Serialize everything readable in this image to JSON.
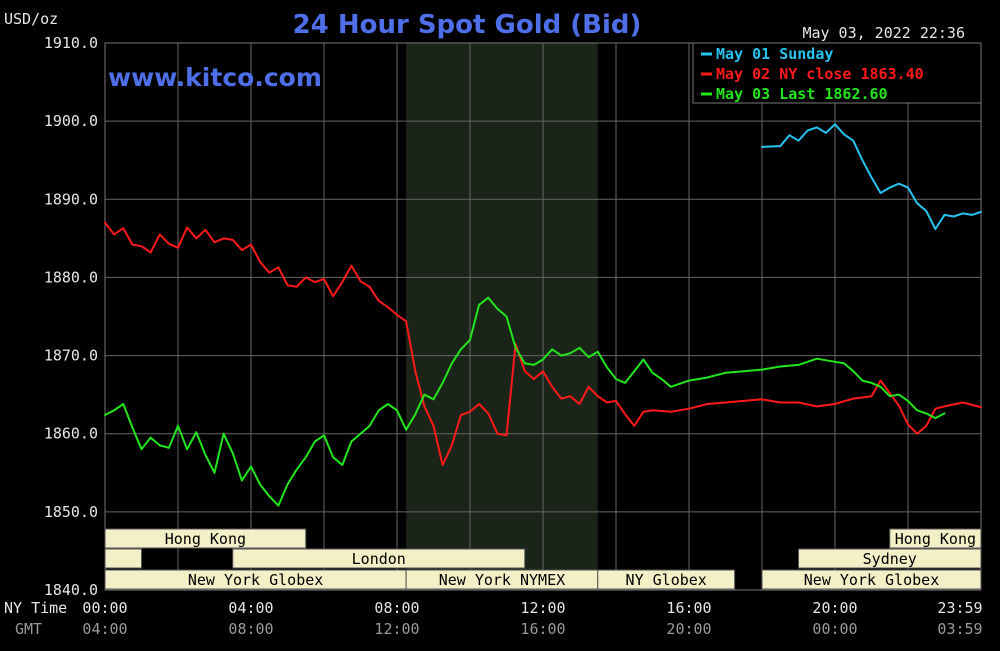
{
  "unit_label": "USD/oz",
  "title": "24 Hour Spot Gold (Bid)",
  "timestamp": "May 03, 2022 22:36",
  "watermark": "www.kitco.com",
  "colors": {
    "background": "#000000",
    "title": "#4f6fe8",
    "grid": "#666666",
    "axis_text": "#e6e6e6",
    "gmt_text": "#9a9a9a",
    "session_fill": "#f3efc6",
    "session_text": "#000000",
    "ny_session_shade": "#1b2418"
  },
  "legend": [
    {
      "label": "May 01 Sunday",
      "color": "#27c3ef"
    },
    {
      "label": "May 02 NY close 1863.40",
      "color": "#ff1a1a"
    },
    {
      "label": "May 03 Last 1862.60",
      "color": "#22e61c"
    }
  ],
  "x_row_labels": {
    "ny": "NY Time",
    "gmt": "GMT"
  },
  "x_ticks_ny": [
    "00:00",
    "04:00",
    "08:00",
    "12:00",
    "16:00",
    "20:00",
    "23:59"
  ],
  "x_ticks_gmt": [
    "04:00",
    "08:00",
    "12:00",
    "16:00",
    "20:00",
    "00:00",
    "03:59"
  ],
  "y_ticks": [
    "1910.0",
    "1900.0",
    "1890.0",
    "1880.0",
    "1870.0",
    "1860.0",
    "1850.0",
    "1840.0"
  ],
  "sessions": [
    {
      "label": "Hong Kong",
      "row": 0,
      "start": 0.0,
      "end": 5.5
    },
    {
      "label": "Hong Kong",
      "row": 0,
      "start": 21.5,
      "end": 24.0
    },
    {
      "label": "",
      "row": 1,
      "start": 0.0,
      "end": 1.0
    },
    {
      "label": "London",
      "row": 1,
      "start": 3.5,
      "end": 11.5
    },
    {
      "label": "Sydney",
      "row": 1,
      "start": 19.0,
      "end": 24.0
    },
    {
      "label": "New York Globex",
      "row": 2,
      "start": 0.0,
      "end": 8.25
    },
    {
      "label": "New York NYMEX",
      "row": 2,
      "start": 8.25,
      "end": 13.5
    },
    {
      "label": "NY Globex",
      "row": 2,
      "start": 13.5,
      "end": 17.25
    },
    {
      "label": "New York Globex",
      "row": 2,
      "start": 18.0,
      "end": 24.0
    }
  ],
  "chart_data": {
    "type": "line",
    "title": "24 Hour Spot Gold (Bid)",
    "ylabel": "USD/oz",
    "xlabel": "NY Time",
    "xlim": [
      0,
      24
    ],
    "ylim": [
      1840,
      1910
    ],
    "grid": true,
    "legend_position": "top-right",
    "shaded_x_range": [
      8.25,
      13.5
    ],
    "series": [
      {
        "name": "May 01 Sunday",
        "color": "#27c3ef",
        "x": [
          18.0,
          18.5,
          18.75,
          19.0,
          19.25,
          19.5,
          19.75,
          20.0,
          20.25,
          20.5,
          20.75,
          21.0,
          21.25,
          21.5,
          21.75,
          22.0,
          22.25,
          22.5,
          22.75,
          23.0,
          23.25,
          23.5,
          23.75,
          24.0
        ],
        "y": [
          1896.7,
          1896.8,
          1898.2,
          1897.5,
          1898.8,
          1899.2,
          1898.5,
          1899.6,
          1898.3,
          1897.5,
          1895.0,
          1892.8,
          1890.8,
          1891.5,
          1892.0,
          1891.5,
          1889.5,
          1888.5,
          1886.2,
          1888.0,
          1887.8,
          1888.2,
          1888.0,
          1888.4
        ]
      },
      {
        "name": "May 02 NY close 1863.40",
        "color": "#ff1a1a",
        "x": [
          0.0,
          0.25,
          0.5,
          0.75,
          1.0,
          1.25,
          1.5,
          1.75,
          2.0,
          2.25,
          2.5,
          2.75,
          3.0,
          3.25,
          3.5,
          3.75,
          4.0,
          4.25,
          4.5,
          4.75,
          5.0,
          5.25,
          5.5,
          5.75,
          6.0,
          6.25,
          6.5,
          6.75,
          7.0,
          7.25,
          7.5,
          7.75,
          8.0,
          8.25,
          8.5,
          8.75,
          9.0,
          9.25,
          9.5,
          9.75,
          10.0,
          10.25,
          10.5,
          10.75,
          11.0,
          11.25,
          11.5,
          11.75,
          12.0,
          12.25,
          12.5,
          12.75,
          13.0,
          13.25,
          13.5,
          13.75,
          14.0,
          14.25,
          14.5,
          14.75,
          15.0,
          15.5,
          16.0,
          16.5,
          17.0,
          17.5,
          18.0,
          18.5,
          19.0,
          19.5,
          20.0,
          20.5,
          21.0,
          21.25,
          21.5,
          21.75,
          22.0,
          22.25,
          22.5,
          22.75,
          23.0,
          23.5,
          24.0
        ],
        "y": [
          1887.0,
          1885.5,
          1886.3,
          1884.2,
          1884.0,
          1883.2,
          1885.5,
          1884.3,
          1883.8,
          1886.4,
          1885.0,
          1886.1,
          1884.5,
          1885.0,
          1884.8,
          1883.5,
          1884.2,
          1882.0,
          1880.6,
          1881.3,
          1879.0,
          1878.8,
          1880.0,
          1879.4,
          1879.8,
          1877.6,
          1879.4,
          1881.5,
          1879.5,
          1878.8,
          1877.0,
          1876.2,
          1875.2,
          1874.4,
          1868.0,
          1863.5,
          1861.0,
          1856.0,
          1858.5,
          1862.4,
          1862.8,
          1863.8,
          1862.6,
          1860.0,
          1859.8,
          1871.5,
          1868.0,
          1867.0,
          1868.0,
          1866.0,
          1864.5,
          1864.8,
          1863.8,
          1866.0,
          1864.8,
          1864.0,
          1864.2,
          1862.5,
          1861.0,
          1862.8,
          1863.0,
          1862.8,
          1863.2,
          1863.8,
          1864.0,
          1864.2,
          1864.4,
          1864.0,
          1864.0,
          1863.5,
          1863.8,
          1864.5,
          1864.8,
          1866.8,
          1865.2,
          1863.6,
          1861.2,
          1860.0,
          1861.0,
          1863.2,
          1863.5,
          1864.0,
          1863.4
        ]
      },
      {
        "name": "May 03 Last 1862.60",
        "color": "#22e61c",
        "x": [
          0.0,
          0.25,
          0.5,
          0.75,
          1.0,
          1.25,
          1.5,
          1.75,
          2.0,
          2.25,
          2.5,
          2.75,
          3.0,
          3.25,
          3.5,
          3.75,
          4.0,
          4.25,
          4.5,
          4.75,
          5.0,
          5.25,
          5.5,
          5.75,
          6.0,
          6.25,
          6.5,
          6.75,
          7.0,
          7.25,
          7.5,
          7.75,
          8.0,
          8.25,
          8.5,
          8.75,
          9.0,
          9.25,
          9.5,
          9.75,
          10.0,
          10.25,
          10.5,
          10.75,
          11.0,
          11.25,
          11.5,
          11.75,
          12.0,
          12.25,
          12.5,
          12.75,
          13.0,
          13.25,
          13.5,
          13.75,
          14.0,
          14.25,
          14.5,
          14.75,
          15.0,
          15.25,
          15.5,
          16.0,
          16.5,
          17.0,
          17.5,
          18.0,
          18.5,
          19.0,
          19.5,
          20.0,
          20.25,
          20.5,
          20.75,
          21.0,
          21.25,
          21.5,
          21.75,
          22.0,
          22.25,
          22.5,
          22.75,
          23.0
        ],
        "y": [
          1862.4,
          1863.0,
          1863.8,
          1860.8,
          1858.0,
          1859.5,
          1858.5,
          1858.2,
          1861.0,
          1858.0,
          1860.2,
          1857.3,
          1855.0,
          1860.0,
          1857.5,
          1854.0,
          1855.8,
          1853.5,
          1852.0,
          1850.8,
          1853.5,
          1855.4,
          1857.0,
          1859.0,
          1859.8,
          1857.0,
          1856.0,
          1859.0,
          1860.0,
          1861.0,
          1863.0,
          1863.8,
          1863.0,
          1860.5,
          1862.5,
          1865.0,
          1864.4,
          1866.5,
          1869.0,
          1870.8,
          1872.0,
          1876.5,
          1877.4,
          1876.0,
          1875.0,
          1871.0,
          1869.0,
          1868.8,
          1869.5,
          1870.8,
          1870.0,
          1870.3,
          1871.0,
          1869.8,
          1870.5,
          1868.5,
          1867.0,
          1866.5,
          1868.0,
          1869.5,
          1867.8,
          1867.0,
          1866.0,
          1866.8,
          1867.2,
          1867.8,
          1868.0,
          1868.2,
          1868.6,
          1868.8,
          1869.6,
          1869.2,
          1869.0,
          1868.0,
          1866.8,
          1866.5,
          1866.0,
          1864.8,
          1865.0,
          1864.2,
          1863.0,
          1862.6,
          1862.0,
          1862.6
        ]
      }
    ]
  }
}
